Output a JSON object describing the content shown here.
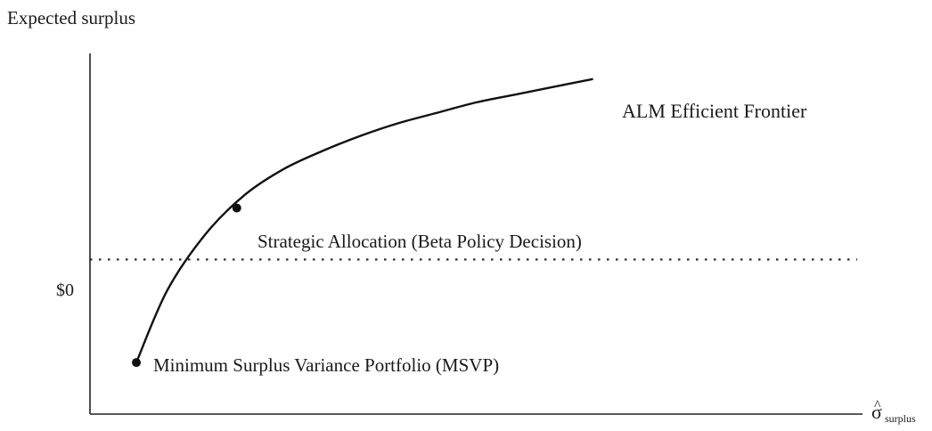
{
  "chart_data": {
    "type": "line",
    "title": "",
    "ylabel": "Expected surplus",
    "xlabel": "σ",
    "xlabel_hat": "^",
    "xlabel_subscript": "surplus",
    "xlim": [
      0,
      10
    ],
    "ylim": [
      -3,
      4
    ],
    "zero_line": {
      "label": "$0",
      "value": 0,
      "style": "dotted"
    },
    "series": [
      {
        "name": "ALM Efficient Frontier",
        "x": [
          0.6,
          1.0,
          1.5,
          2.0,
          2.5,
          3.0,
          3.5,
          4.0,
          4.5,
          5.0,
          5.5,
          6.0,
          6.5
        ],
        "y": [
          -2.0,
          -0.6,
          0.5,
          1.25,
          1.75,
          2.1,
          2.4,
          2.65,
          2.85,
          3.05,
          3.2,
          3.35,
          3.5
        ]
      }
    ],
    "points": [
      {
        "name": "Minimum Surplus Variance Portfolio (MSVP)",
        "x": 0.6,
        "y": -2.0
      },
      {
        "name": "Strategic Allocation (Beta Policy Decision)",
        "x": 1.9,
        "y": 1.0
      }
    ],
    "colors": {
      "line": "#111111",
      "text": "#1a1a1a",
      "axis": "#222222"
    }
  }
}
